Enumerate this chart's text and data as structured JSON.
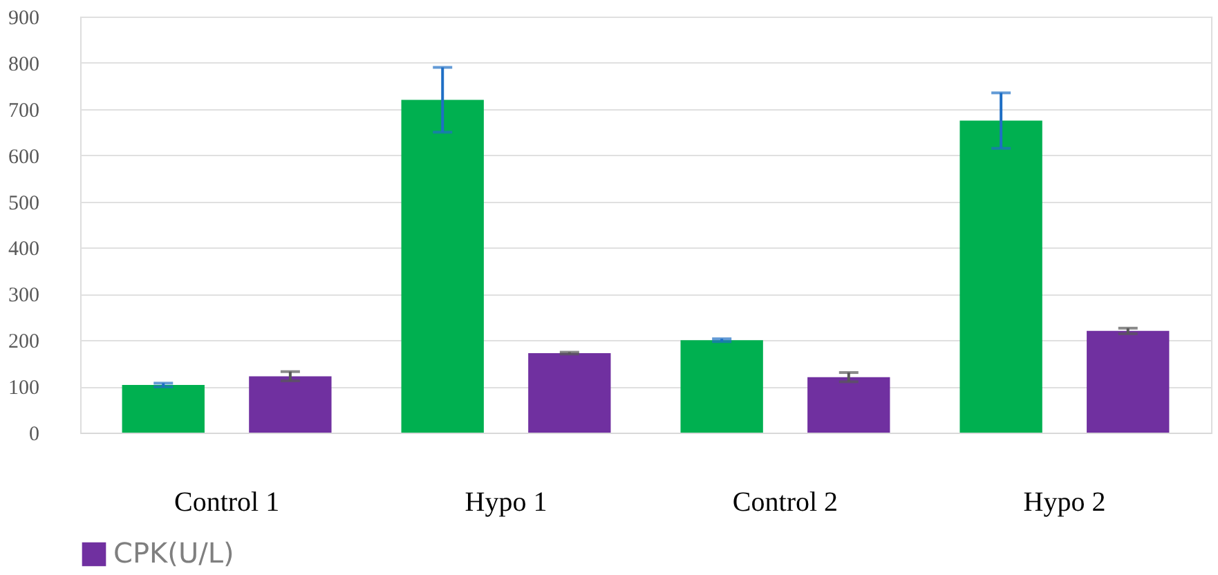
{
  "chart_data": {
    "type": "bar",
    "categories": [
      "Control 1",
      "Hypo 1",
      "Control 2",
      "Hypo 2"
    ],
    "series": [
      {
        "color": "#00b050",
        "values": [
          103,
          720,
          200,
          675
        ],
        "errors": [
          4,
          70,
          3,
          60
        ]
      },
      {
        "name": "CPK(U/L)",
        "color": "#7030a0",
        "values": [
          122,
          172,
          120,
          220
        ],
        "errors": [
          10,
          2,
          10,
          6
        ]
      }
    ],
    "ylim": [
      0,
      900
    ],
    "yticks": [
      0,
      100,
      200,
      300,
      400,
      500,
      600,
      700,
      800,
      900
    ],
    "grid": "y",
    "legend": "bottom"
  }
}
